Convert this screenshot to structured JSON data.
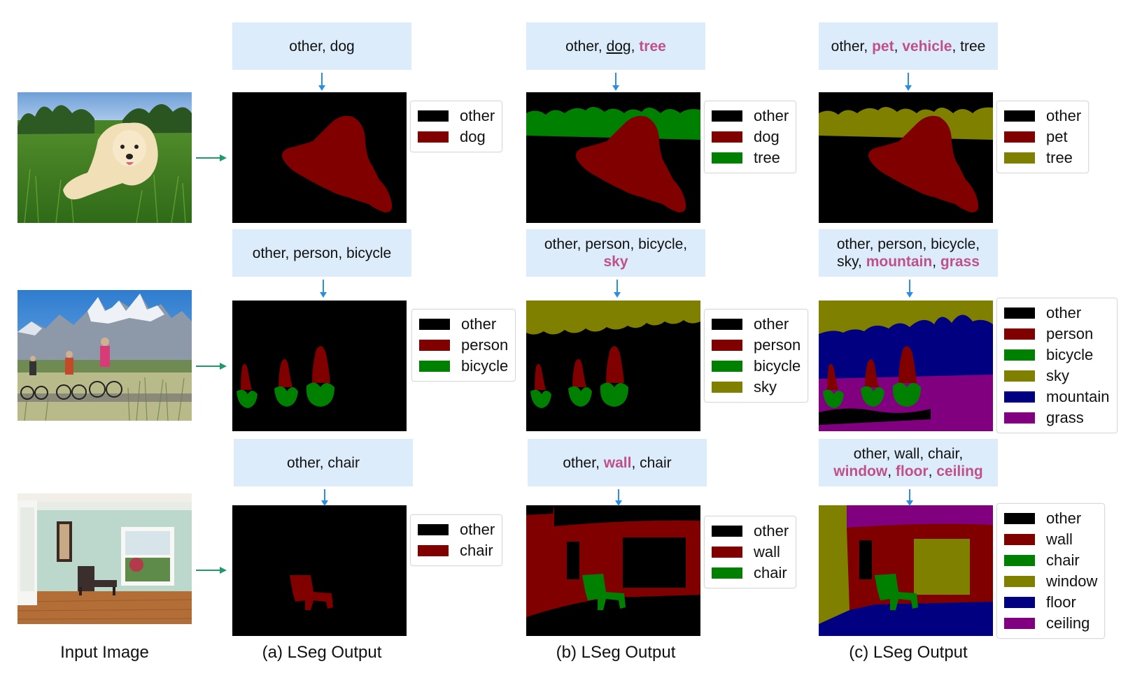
{
  "colors": {
    "other": "#000000",
    "maroon": "#800000",
    "green": "#008000",
    "olive": "#808000",
    "navy": "#000080",
    "purple": "#800080",
    "highlight": "#c0508a",
    "prompt_bg": "#dcecfb"
  },
  "captions": {
    "input": "Input Image",
    "a": "(a) LSeg Output",
    "b": "(b) LSeg Output",
    "c": "(c) LSeg Output"
  },
  "rows": [
    {
      "input_image": "puppy-in-grass-photo",
      "prompts": {
        "a": [
          {
            "t": "other, "
          },
          {
            "t": "dog"
          }
        ],
        "b": [
          {
            "t": "other, "
          },
          {
            "t": "dog",
            "u": true
          },
          {
            "t": ", "
          },
          {
            "t": "tree",
            "new": true
          }
        ],
        "c": [
          {
            "t": "other, "
          },
          {
            "t": "pet",
            "new": true
          },
          {
            "t": ", "
          },
          {
            "t": "vehicle",
            "new": true
          },
          {
            "t": ", tree"
          }
        ]
      },
      "legends": {
        "a": [
          {
            "label": "other",
            "color": "#000000"
          },
          {
            "label": "dog",
            "color": "#800000"
          }
        ],
        "b": [
          {
            "label": "other",
            "color": "#000000"
          },
          {
            "label": "dog",
            "color": "#800000"
          },
          {
            "label": "tree",
            "color": "#008000"
          }
        ],
        "c": [
          {
            "label": "other",
            "color": "#000000"
          },
          {
            "label": "pet",
            "color": "#800000"
          },
          {
            "label": "tree",
            "color": "#808000"
          }
        ]
      }
    },
    {
      "input_image": "cyclists-mountains-photo",
      "prompts": {
        "a": [
          {
            "t": "other, person, bicycle"
          }
        ],
        "b": [
          {
            "t": "other, person, bicycle,"
          },
          {
            "br": true
          },
          {
            "t": "sky",
            "new": true
          }
        ],
        "c": [
          {
            "t": "other, person, bicycle,"
          },
          {
            "br": true
          },
          {
            "t": "sky, "
          },
          {
            "t": "mountain",
            "new": true
          },
          {
            "t": ", "
          },
          {
            "t": "grass",
            "new": true
          }
        ]
      },
      "legends": {
        "a": [
          {
            "label": "other",
            "color": "#000000"
          },
          {
            "label": "person",
            "color": "#800000"
          },
          {
            "label": "bicycle",
            "color": "#008000"
          }
        ],
        "b": [
          {
            "label": "other",
            "color": "#000000"
          },
          {
            "label": "person",
            "color": "#800000"
          },
          {
            "label": "bicycle",
            "color": "#008000"
          },
          {
            "label": "sky",
            "color": "#808000"
          }
        ],
        "c": [
          {
            "label": "other",
            "color": "#000000"
          },
          {
            "label": "person",
            "color": "#800000"
          },
          {
            "label": "bicycle",
            "color": "#008000"
          },
          {
            "label": "sky",
            "color": "#808000"
          },
          {
            "label": "mountain",
            "color": "#000080"
          },
          {
            "label": "grass",
            "color": "#800080"
          }
        ]
      }
    },
    {
      "input_image": "empty-room-with-chair-photo",
      "prompts": {
        "a": [
          {
            "t": "other, chair"
          }
        ],
        "b": [
          {
            "t": "other, "
          },
          {
            "t": "wall",
            "new": true
          },
          {
            "t": ", chair"
          }
        ],
        "c": [
          {
            "t": "other, wall, chair,"
          },
          {
            "br": true
          },
          {
            "t": "window",
            "new": true
          },
          {
            "t": ", "
          },
          {
            "t": "floor",
            "new": true
          },
          {
            "t": ", "
          },
          {
            "t": "ceiling",
            "new": true
          }
        ]
      },
      "legends": {
        "a": [
          {
            "label": "other",
            "color": "#000000"
          },
          {
            "label": "chair",
            "color": "#800000"
          }
        ],
        "b": [
          {
            "label": "other",
            "color": "#000000"
          },
          {
            "label": "wall",
            "color": "#800000"
          },
          {
            "label": "chair",
            "color": "#008000"
          }
        ],
        "c": [
          {
            "label": "other",
            "color": "#000000"
          },
          {
            "label": "wall",
            "color": "#800000"
          },
          {
            "label": "chair",
            "color": "#008000"
          },
          {
            "label": "window",
            "color": "#808000"
          },
          {
            "label": "floor",
            "color": "#000080"
          },
          {
            "label": "ceiling",
            "color": "#800080"
          }
        ]
      }
    }
  ]
}
